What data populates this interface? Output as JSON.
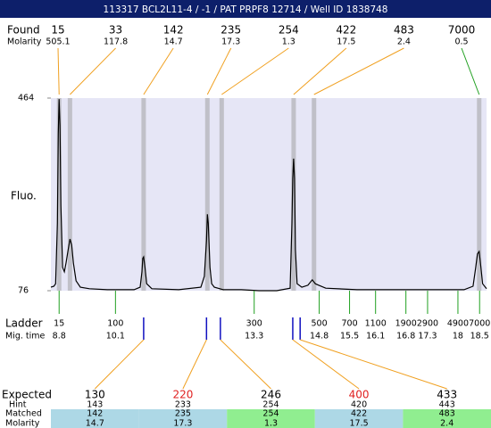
{
  "header": {
    "title": "113317  BCL2L11-4 / -1 / PAT PRPF8 12714 / Well ID 1838748"
  },
  "found": {
    "label": "Found",
    "molarity_label": "Molarity",
    "sizes": [
      15,
      33,
      142,
      235,
      254,
      422,
      483,
      7000
    ],
    "molarity": [
      505.1,
      117.8,
      14.7,
      17.3,
      1.3,
      17.5,
      2.4,
      0.5
    ],
    "line_colors": [
      "#f0a020",
      "#f0a020",
      "#f0a020",
      "#f0a020",
      "#f0a020",
      "#f0a020",
      "#f0a020",
      "#20a020"
    ]
  },
  "chart_data": {
    "type": "line",
    "ylabel": "Fluo.",
    "ylim": [
      76,
      464
    ],
    "yticks": [
      76,
      464
    ],
    "xlim": [
      8.61,
      18.66
    ],
    "background": "#e6e6f6",
    "peak_times": [
      8.8,
      9.05,
      10.75,
      12.22,
      12.55,
      14.21,
      14.68,
      18.49
    ],
    "x": [
      8.61,
      8.68,
      8.72,
      8.76,
      8.78,
      8.8,
      8.82,
      8.84,
      8.88,
      8.92,
      8.96,
      9.01,
      9.05,
      9.09,
      9.13,
      9.19,
      9.29,
      9.5,
      9.91,
      10.53,
      10.67,
      10.71,
      10.73,
      10.75,
      10.78,
      10.82,
      10.94,
      11.56,
      12.07,
      12.15,
      12.2,
      12.22,
      12.24,
      12.28,
      12.32,
      12.38,
      12.59,
      13.0,
      13.41,
      13.82,
      14.13,
      14.17,
      14.19,
      14.21,
      14.23,
      14.25,
      14.29,
      14.4,
      14.54,
      14.64,
      14.71,
      14.79,
      14.95,
      15.67,
      16.7,
      18.14,
      18.35,
      18.41,
      18.45,
      18.49,
      18.53,
      18.57,
      18.66
    ],
    "series": [
      {
        "color": "#000000",
        "values": [
          83,
          85,
          90,
          212,
          392,
          462,
          410,
          248,
          123,
          114,
          132,
          159,
          180,
          168,
          132,
          96,
          83,
          80,
          78,
          78,
          83,
          114,
          141,
          144,
          123,
          90,
          80,
          78,
          83,
          105,
          177,
          230,
          212,
          123,
          90,
          83,
          78,
          78,
          76,
          76,
          81,
          212,
          302,
          342,
          302,
          159,
          90,
          83,
          87,
          98,
          90,
          87,
          81,
          78,
          78,
          78,
          85,
          123,
          150,
          155,
          123,
          90,
          80
        ]
      }
    ]
  },
  "ladder": {
    "label": "Ladder",
    "time_label": "Mig. time",
    "color": "#20a020",
    "sizes": [
      15,
      100,
      300,
      500,
      700,
      1100,
      1900,
      2900,
      4900,
      7000
    ],
    "times": [
      8.8,
      10.1,
      13.3,
      14.8,
      15.5,
      16.1,
      16.8,
      17.3,
      18,
      18.5
    ]
  },
  "expected": {
    "labels": [
      "Expected",
      "Hint",
      "Matched",
      "Molarity"
    ],
    "expected": [
      130,
      220,
      246,
      400,
      433
    ],
    "hint": [
      143,
      233,
      254,
      420,
      443
    ],
    "matched": [
      142,
      235,
      254,
      422,
      483
    ],
    "molarity": [
      14.7,
      17.3,
      1.3,
      17.5,
      2.4
    ],
    "colors": [
      "#000000",
      "#e02020",
      "#000000",
      "#e02020",
      "#000000"
    ],
    "status_colors": [
      "#add8e6",
      "#add8e6",
      "#90ee90",
      "#add8e6",
      "#90ee90"
    ],
    "hint_times": [
      10.75,
      12.2,
      12.52,
      14.19,
      14.36
    ]
  }
}
